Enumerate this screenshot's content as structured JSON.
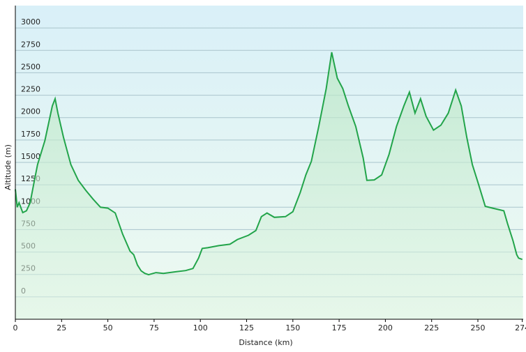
{
  "chart_data": {
    "type": "area-line",
    "x_label": "Distance  (km)",
    "y_label": "Altitude (m)",
    "x": [
      0,
      1,
      2,
      4,
      6,
      8,
      10,
      12,
      16,
      20,
      21.5,
      23,
      26,
      30,
      34,
      38,
      42,
      46,
      50,
      54,
      58,
      62,
      64,
      66,
      68,
      70,
      72,
      76,
      80,
      86,
      92,
      96,
      99,
      101,
      104,
      110,
      116,
      120,
      126,
      130,
      133,
      136,
      140,
      146,
      150,
      154,
      157,
      160,
      164,
      168,
      171,
      172,
      174,
      177,
      180,
      184,
      188,
      190,
      194,
      198,
      202,
      206,
      210,
      213,
      216,
      219,
      222,
      226,
      230,
      234,
      238,
      241,
      244,
      247,
      250,
      254,
      258,
      262,
      264,
      266,
      269,
      271,
      272,
      274
    ],
    "values": [
      1200,
      1000,
      1050,
      940,
      960,
      1050,
      1265,
      1475,
      1745,
      2130,
      2210,
      2050,
      1780,
      1475,
      1300,
      1190,
      1090,
      1000,
      990,
      935,
      700,
      510,
      470,
      355,
      290,
      262,
      247,
      270,
      262,
      278,
      293,
      316,
      432,
      540,
      548,
      571,
      587,
      640,
      687,
      740,
      895,
      935,
      887,
      895,
      950,
      1165,
      1360,
      1512,
      1900,
      2323,
      2730,
      2630,
      2440,
      2323,
      2130,
      1900,
      1550,
      1300,
      1305,
      1360,
      1590,
      1900,
      2130,
      2284,
      2050,
      2210,
      2015,
      1860,
      1915,
      2050,
      2307,
      2130,
      1780,
      1475,
      1280,
      1010,
      990,
      970,
      960,
      818,
      625,
      470,
      432,
      417
    ],
    "color": "#22a44a",
    "xlim": [
      0,
      274.5
    ],
    "xticks": [
      0,
      25,
      50,
      75,
      100,
      125,
      150,
      175,
      200,
      225,
      250,
      274
    ],
    "ylim": [
      -250,
      3250
    ],
    "yticks": [
      0,
      250,
      500,
      750,
      1000,
      1250,
      1500,
      1750,
      2000,
      2250,
      2500,
      2750,
      3000
    ],
    "grid": true
  }
}
